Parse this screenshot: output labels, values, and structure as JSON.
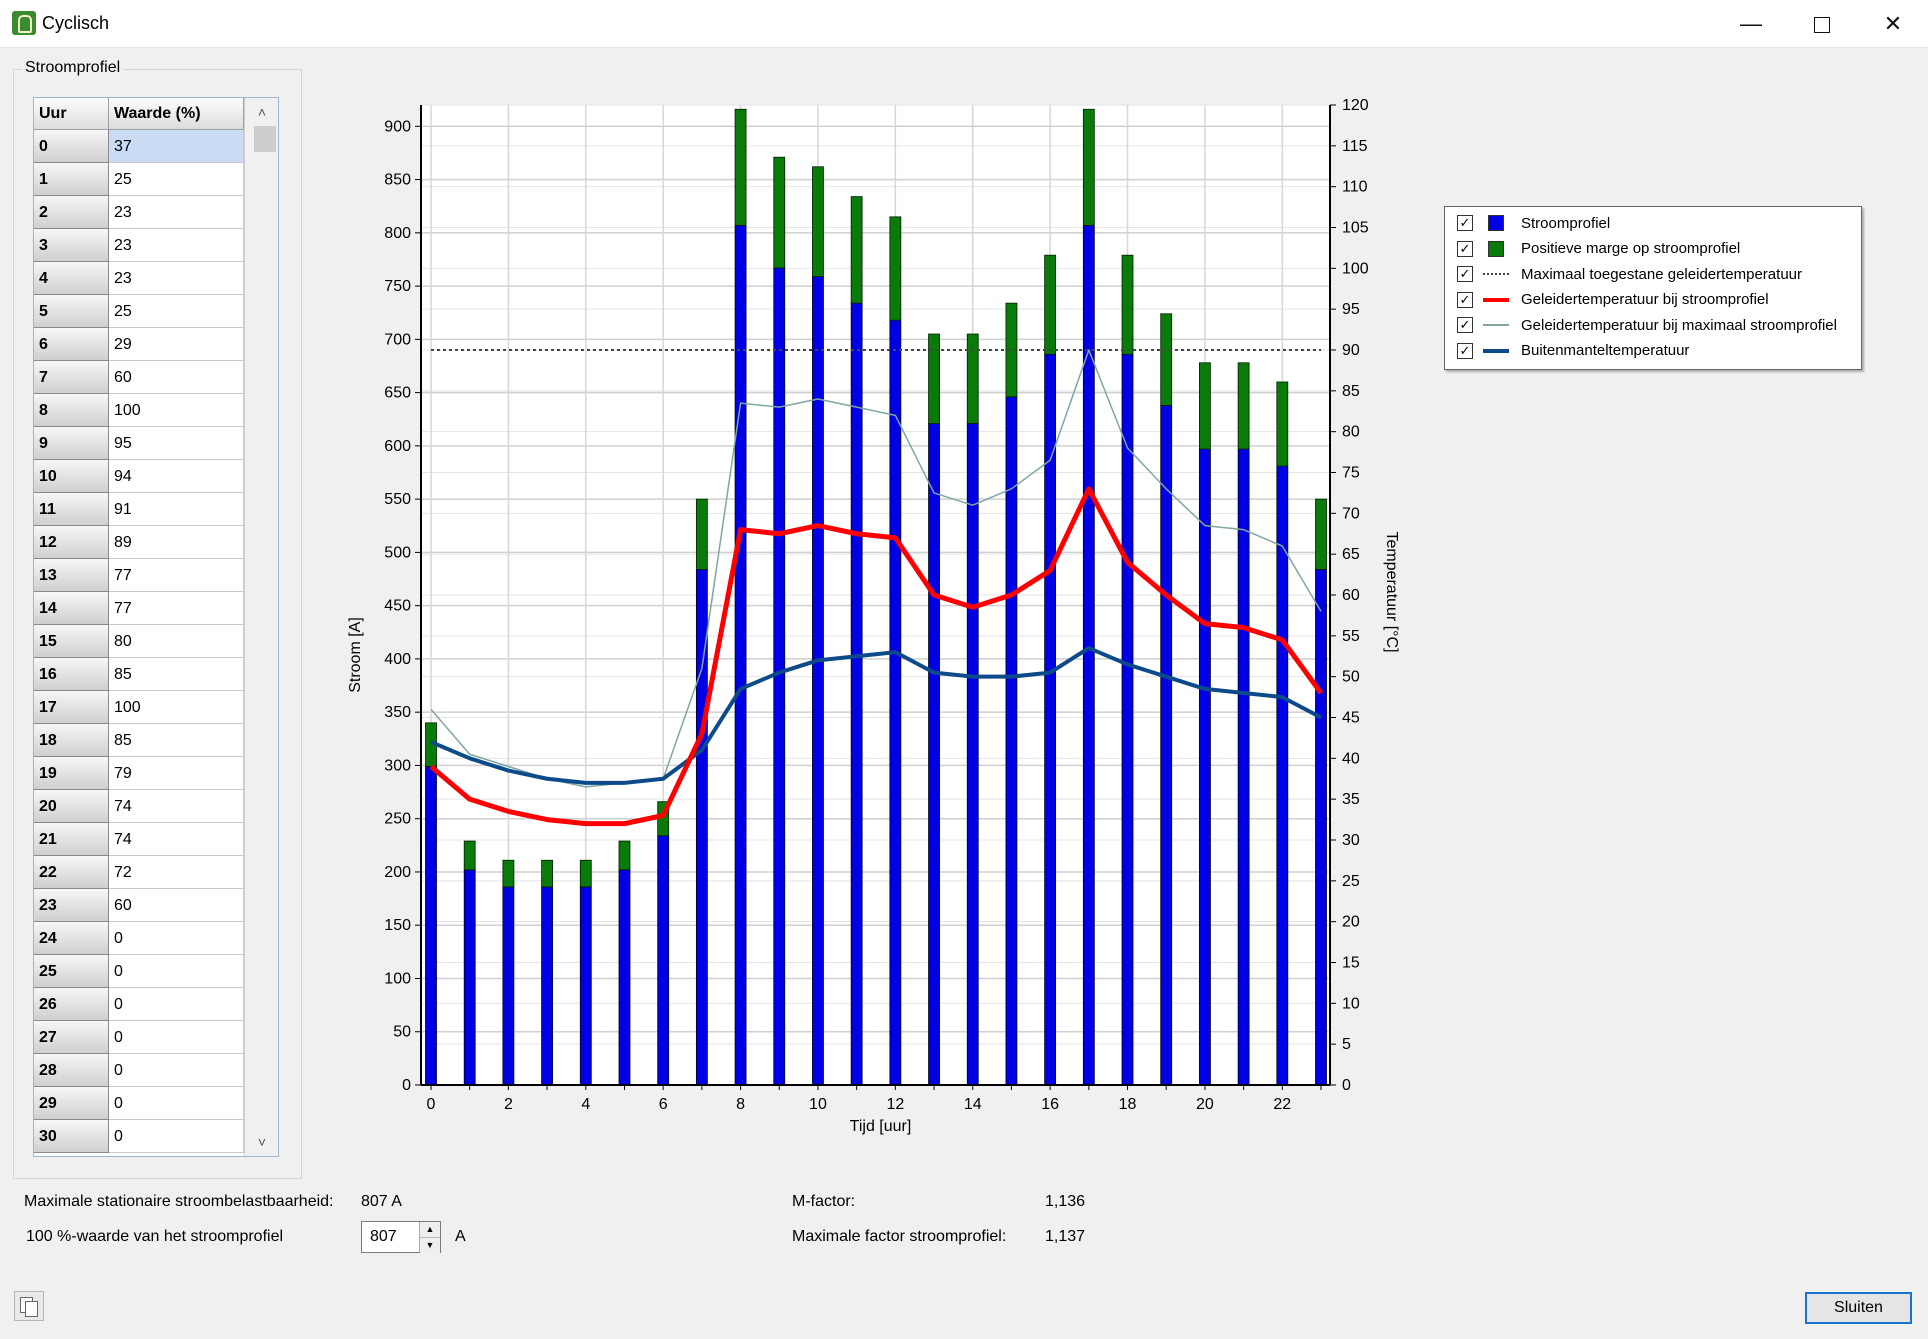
{
  "window": {
    "title": "Cyclisch",
    "min": "—",
    "close": "✕"
  },
  "group_label": "Stroomprofiel",
  "table": {
    "headers": [
      "Uur",
      "Waarde (%)"
    ],
    "rows": [
      [
        "0",
        "37"
      ],
      [
        "1",
        "25"
      ],
      [
        "2",
        "23"
      ],
      [
        "3",
        "23"
      ],
      [
        "4",
        "23"
      ],
      [
        "5",
        "25"
      ],
      [
        "6",
        "29"
      ],
      [
        "7",
        "60"
      ],
      [
        "8",
        "100"
      ],
      [
        "9",
        "95"
      ],
      [
        "10",
        "94"
      ],
      [
        "11",
        "91"
      ],
      [
        "12",
        "89"
      ],
      [
        "13",
        "77"
      ],
      [
        "14",
        "77"
      ],
      [
        "15",
        "80"
      ],
      [
        "16",
        "85"
      ],
      [
        "17",
        "100"
      ],
      [
        "18",
        "85"
      ],
      [
        "19",
        "79"
      ],
      [
        "20",
        "74"
      ],
      [
        "21",
        "74"
      ],
      [
        "22",
        "72"
      ],
      [
        "23",
        "60"
      ],
      [
        "24",
        "0"
      ],
      [
        "25",
        "0"
      ],
      [
        "26",
        "0"
      ],
      [
        "27",
        "0"
      ],
      [
        "28",
        "0"
      ],
      [
        "29",
        "0"
      ],
      [
        "30",
        "0"
      ]
    ],
    "scroll_up": "˄",
    "scroll_down": "˅"
  },
  "info": {
    "max_label": "Maximale stationaire stroombelastbaarheid:",
    "max_value": "807 A",
    "pct_label": "100 %-waarde van het stroomprofiel",
    "pct_value": "807",
    "pct_unit": "A",
    "mfactor_label": "M-factor:",
    "mfactor_value": "1,136",
    "maxfactor_label": "Maximale factor stroomprofiel:",
    "maxfactor_value": "1,137"
  },
  "buttons": {
    "close": "Sluiten"
  },
  "legend": [
    {
      "label": "Stroomprofiel",
      "swatch": "box",
      "color": "#0000e6"
    },
    {
      "label": "Positieve marge op stroomprofiel",
      "swatch": "box",
      "color": "#0a7a0a"
    },
    {
      "label": "Maximaal toegestane geleidertemperatuur",
      "swatch": "dotted",
      "color": "#444444"
    },
    {
      "label": "Geleidertemperatuur bij stroomprofiel",
      "swatch": "thick",
      "color": "#ff0000"
    },
    {
      "label": "Geleidertemperatuur bij maximaal stroomprofiel",
      "swatch": "thin",
      "color": "#7fa7a0"
    },
    {
      "label": "Buitenmanteltemperatuur",
      "swatch": "thick",
      "color": "#0d4a8a"
    }
  ],
  "chart_data": {
    "type": "bar",
    "xlabel": "Tijd [uur]",
    "ylabel": "Stroom [A]",
    "y2label": "Temperatuur [°C]",
    "ylim": [
      0,
      920
    ],
    "y2lim": [
      0,
      120
    ],
    "yticks": [
      0,
      50,
      100,
      150,
      200,
      250,
      300,
      350,
      400,
      450,
      500,
      550,
      600,
      650,
      700,
      750,
      800,
      850,
      900
    ],
    "y2ticks": [
      0,
      5,
      10,
      15,
      20,
      25,
      30,
      35,
      40,
      45,
      50,
      55,
      60,
      65,
      70,
      75,
      80,
      85,
      90,
      95,
      100,
      105,
      110,
      115,
      120
    ],
    "xticks": [
      0,
      2,
      4,
      6,
      8,
      10,
      12,
      14,
      16,
      18,
      20,
      22
    ],
    "x": [
      0,
      1,
      2,
      3,
      4,
      5,
      6,
      7,
      8,
      9,
      10,
      11,
      12,
      13,
      14,
      15,
      16,
      17,
      18,
      19,
      20,
      21,
      22,
      23
    ],
    "grid": true,
    "series": [
      {
        "name": "Stroomprofiel",
        "axis": "left",
        "kind": "bar",
        "color": "#0000e6",
        "values": [
          299,
          202,
          186,
          186,
          186,
          202,
          234,
          484,
          807,
          767,
          759,
          734,
          718,
          621,
          621,
          646,
          686,
          807,
          686,
          638,
          597,
          597,
          581,
          484
        ]
      },
      {
        "name": "Positieve marge op stroomprofiel",
        "axis": "left",
        "kind": "bar-stack",
        "color": "#0a7a0a",
        "values": [
          41,
          27,
          25,
          25,
          25,
          27,
          32,
          66,
          109,
          104,
          103,
          100,
          97,
          84,
          84,
          88,
          93,
          109,
          93,
          86,
          81,
          81,
          79,
          66
        ]
      },
      {
        "name": "Maximaal toegestane geleidertemperatuur",
        "axis": "right",
        "kind": "line-dotted",
        "color": "#444444",
        "values": [
          90,
          90,
          90,
          90,
          90,
          90,
          90,
          90,
          90,
          90,
          90,
          90,
          90,
          90,
          90,
          90,
          90,
          90,
          90,
          90,
          90,
          90,
          90,
          90
        ]
      },
      {
        "name": "Geleidertemperatuur bij stroomprofiel",
        "axis": "right",
        "kind": "line",
        "color": "#ff0000",
        "values": [
          39,
          35,
          33.5,
          32.5,
          32,
          32,
          33,
          43,
          68,
          67.5,
          68.5,
          67.5,
          67,
          60,
          58.5,
          60,
          63,
          73,
          64,
          60,
          56.5,
          56,
          54.5,
          48
        ]
      },
      {
        "name": "Geleidertemperatuur bij maximaal stroomprofiel",
        "axis": "right",
        "kind": "line-thin",
        "color": "#7fa7a0",
        "values": [
          46,
          40.5,
          39,
          37.5,
          36.5,
          37,
          37.5,
          51,
          83.5,
          83,
          84,
          83,
          82,
          72.5,
          71,
          73,
          76.5,
          90,
          78,
          73,
          68.5,
          68,
          66,
          58
        ]
      },
      {
        "name": "Buitenmanteltemperatuur",
        "axis": "right",
        "kind": "line",
        "color": "#0d4a8a",
        "values": [
          42,
          40,
          38.5,
          37.5,
          37,
          37,
          37.5,
          41,
          48.5,
          50.5,
          52,
          52.5,
          53,
          50.5,
          50,
          50,
          50.5,
          53.5,
          51.5,
          50,
          48.5,
          48,
          47.5,
          45
        ]
      }
    ]
  }
}
